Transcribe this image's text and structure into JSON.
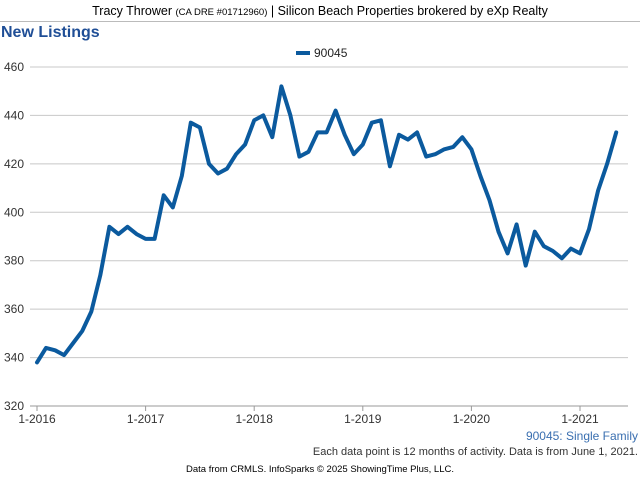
{
  "header": {
    "agent_name": "Tracy Thrower",
    "license": "(CA DRE #01712960)",
    "brokerage": "| Silicon Beach Properties brokered by eXp Realty"
  },
  "chart_data": {
    "type": "line",
    "title": "New Listings",
    "xlabel": "",
    "ylabel": "",
    "ylim": [
      320,
      460
    ],
    "yticks": [
      320,
      340,
      360,
      380,
      400,
      420,
      440,
      460
    ],
    "xticks": [
      "1-2016",
      "1-2017",
      "1-2018",
      "1-2019",
      "1-2020",
      "1-2021"
    ],
    "x": [
      "2016-01",
      "2016-02",
      "2016-03",
      "2016-04",
      "2016-05",
      "2016-06",
      "2016-07",
      "2016-08",
      "2016-09",
      "2016-10",
      "2016-11",
      "2016-12",
      "2017-01",
      "2017-02",
      "2017-03",
      "2017-04",
      "2017-05",
      "2017-06",
      "2017-07",
      "2017-08",
      "2017-09",
      "2017-10",
      "2017-11",
      "2017-12",
      "2018-01",
      "2018-02",
      "2018-03",
      "2018-04",
      "2018-05",
      "2018-06",
      "2018-07",
      "2018-08",
      "2018-09",
      "2018-10",
      "2018-11",
      "2018-12",
      "2019-01",
      "2019-02",
      "2019-03",
      "2019-04",
      "2019-05",
      "2019-06",
      "2019-07",
      "2019-08",
      "2019-09",
      "2019-10",
      "2019-11",
      "2019-12",
      "2020-01",
      "2020-02",
      "2020-03",
      "2020-04",
      "2020-05",
      "2020-06",
      "2020-07",
      "2020-08",
      "2020-09",
      "2020-10",
      "2020-11",
      "2020-12",
      "2021-01",
      "2021-02",
      "2021-03",
      "2021-04",
      "2021-05"
    ],
    "series": [
      {
        "name": "90045",
        "color": "#0b5a9e",
        "values": [
          338,
          344,
          343,
          341,
          346,
          351,
          359,
          374,
          394,
          391,
          394,
          391,
          389,
          389,
          407,
          402,
          415,
          437,
          435,
          420,
          416,
          418,
          424,
          428,
          438,
          440,
          431,
          452,
          440,
          423,
          425,
          433,
          433,
          442,
          432,
          424,
          428,
          437,
          438,
          419,
          432,
          430,
          433,
          423,
          424,
          426,
          427,
          431,
          426,
          415,
          405,
          392,
          383,
          395,
          378,
          392,
          386,
          384,
          381,
          385,
          383,
          393,
          409,
          420,
          433
        ]
      }
    ],
    "grid": true,
    "legend_position": "top-center"
  },
  "notes": {
    "series_label": "90045: Single Family",
    "data_note": "Each data point is 12 months of activity. Data is from June 1, 2021."
  },
  "footer": "Data from CRMLS. InfoSparks © 2025 ShowingTime Plus, LLC."
}
